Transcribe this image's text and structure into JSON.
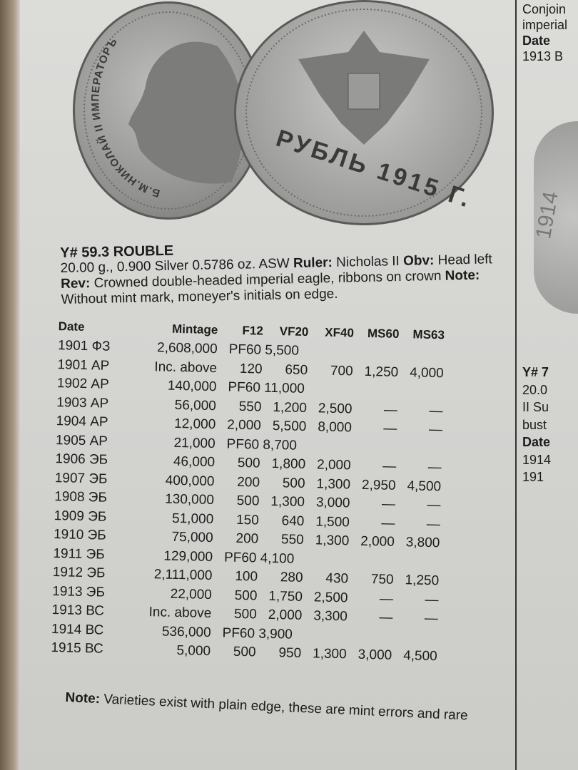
{
  "coin_images": {
    "obverse_legend": "Б.М.НИКОЛАЙ II ИМПЕРАТОРЪ",
    "reverse_legend": "РУБЛЬ 1915 Г."
  },
  "entry": {
    "title": "Y# 59.3 ROUBLE",
    "specs": "20.00 g., 0.900 Silver 0.5786 oz. ASW",
    "ruler_label": "Ruler:",
    "ruler": "Nicholas II",
    "obv_label": "Obv:",
    "obv": "Head left",
    "rev_label": "Rev:",
    "rev": "Crowned double-headed imperial eagle, ribbons on crown",
    "note_label": "Note:",
    "note": "Without mint mark, moneyer's initials on edge."
  },
  "table": {
    "headers": [
      "Date",
      "Mintage",
      "F12",
      "VF20",
      "XF40",
      "MS60",
      "MS63"
    ],
    "rows": [
      {
        "date": "1901 ФЗ",
        "mintage": "2,608,000",
        "proof": "PF60 5,500"
      },
      {
        "date": "1901 АР",
        "mintage": "Inc. above",
        "values": [
          "120",
          "650",
          "700",
          "1,250",
          "4,000"
        ]
      },
      {
        "date": "1902 АР",
        "mintage": "140,000",
        "proof": "PF60 11,000"
      },
      {
        "date": "1903 АР",
        "mintage": "56,000",
        "values": [
          "550",
          "1,200",
          "2,500",
          "—",
          "—"
        ]
      },
      {
        "date": "1904 АР",
        "mintage": "12,000",
        "values": [
          "2,000",
          "5,500",
          "8,000",
          "—",
          "—"
        ]
      },
      {
        "date": "1905 АР",
        "mintage": "21,000",
        "proof": "PF60 8,700"
      },
      {
        "date": "1906 ЭБ",
        "mintage": "46,000",
        "values": [
          "500",
          "1,800",
          "2,000",
          "—",
          "—"
        ]
      },
      {
        "date": "1907 ЭБ",
        "mintage": "400,000",
        "values": [
          "200",
          "500",
          "1,300",
          "2,950",
          "4,500"
        ]
      },
      {
        "date": "1908 ЭБ",
        "mintage": "130,000",
        "values": [
          "500",
          "1,300",
          "3,000",
          "—",
          "—"
        ]
      },
      {
        "date": "1909 ЭБ",
        "mintage": "51,000",
        "values": [
          "150",
          "640",
          "1,500",
          "—",
          "—"
        ]
      },
      {
        "date": "1910 ЭБ",
        "mintage": "75,000",
        "values": [
          "200",
          "550",
          "1,300",
          "2,000",
          "3,800"
        ]
      },
      {
        "date": "1911 ЭБ",
        "mintage": "129,000",
        "proof": "PF60 4,100"
      },
      {
        "date": "1912 ЭБ",
        "mintage": "2,111,000",
        "values": [
          "100",
          "280",
          "430",
          "750",
          "1,250"
        ]
      },
      {
        "date": "1913 ЭБ",
        "mintage": "22,000",
        "values": [
          "500",
          "1,750",
          "2,500",
          "—",
          "—"
        ]
      },
      {
        "date": "1913 ВС",
        "mintage": "Inc. above",
        "values": [
          "500",
          "2,000",
          "3,300",
          "—",
          "—"
        ]
      },
      {
        "date": "1914 ВС",
        "mintage": "536,000",
        "proof": "PF60 3,900"
      },
      {
        "date": "1915 ВС",
        "mintage": "5,000",
        "values": [
          "500",
          "950",
          "1,300",
          "3,000",
          "4,500"
        ]
      }
    ]
  },
  "footnote": {
    "label": "Note:",
    "text": "Varieties exist with plain edge, these are mint errors and rare"
  },
  "right_column": {
    "lines_top": [
      "Conjoin",
      "imperial",
      "Date",
      "1913 B"
    ],
    "coin_date": "1914",
    "lines_bottom": [
      "Y# 7",
      "20.0",
      "II Su",
      "bust",
      "Date",
      "1914",
      "191"
    ]
  }
}
